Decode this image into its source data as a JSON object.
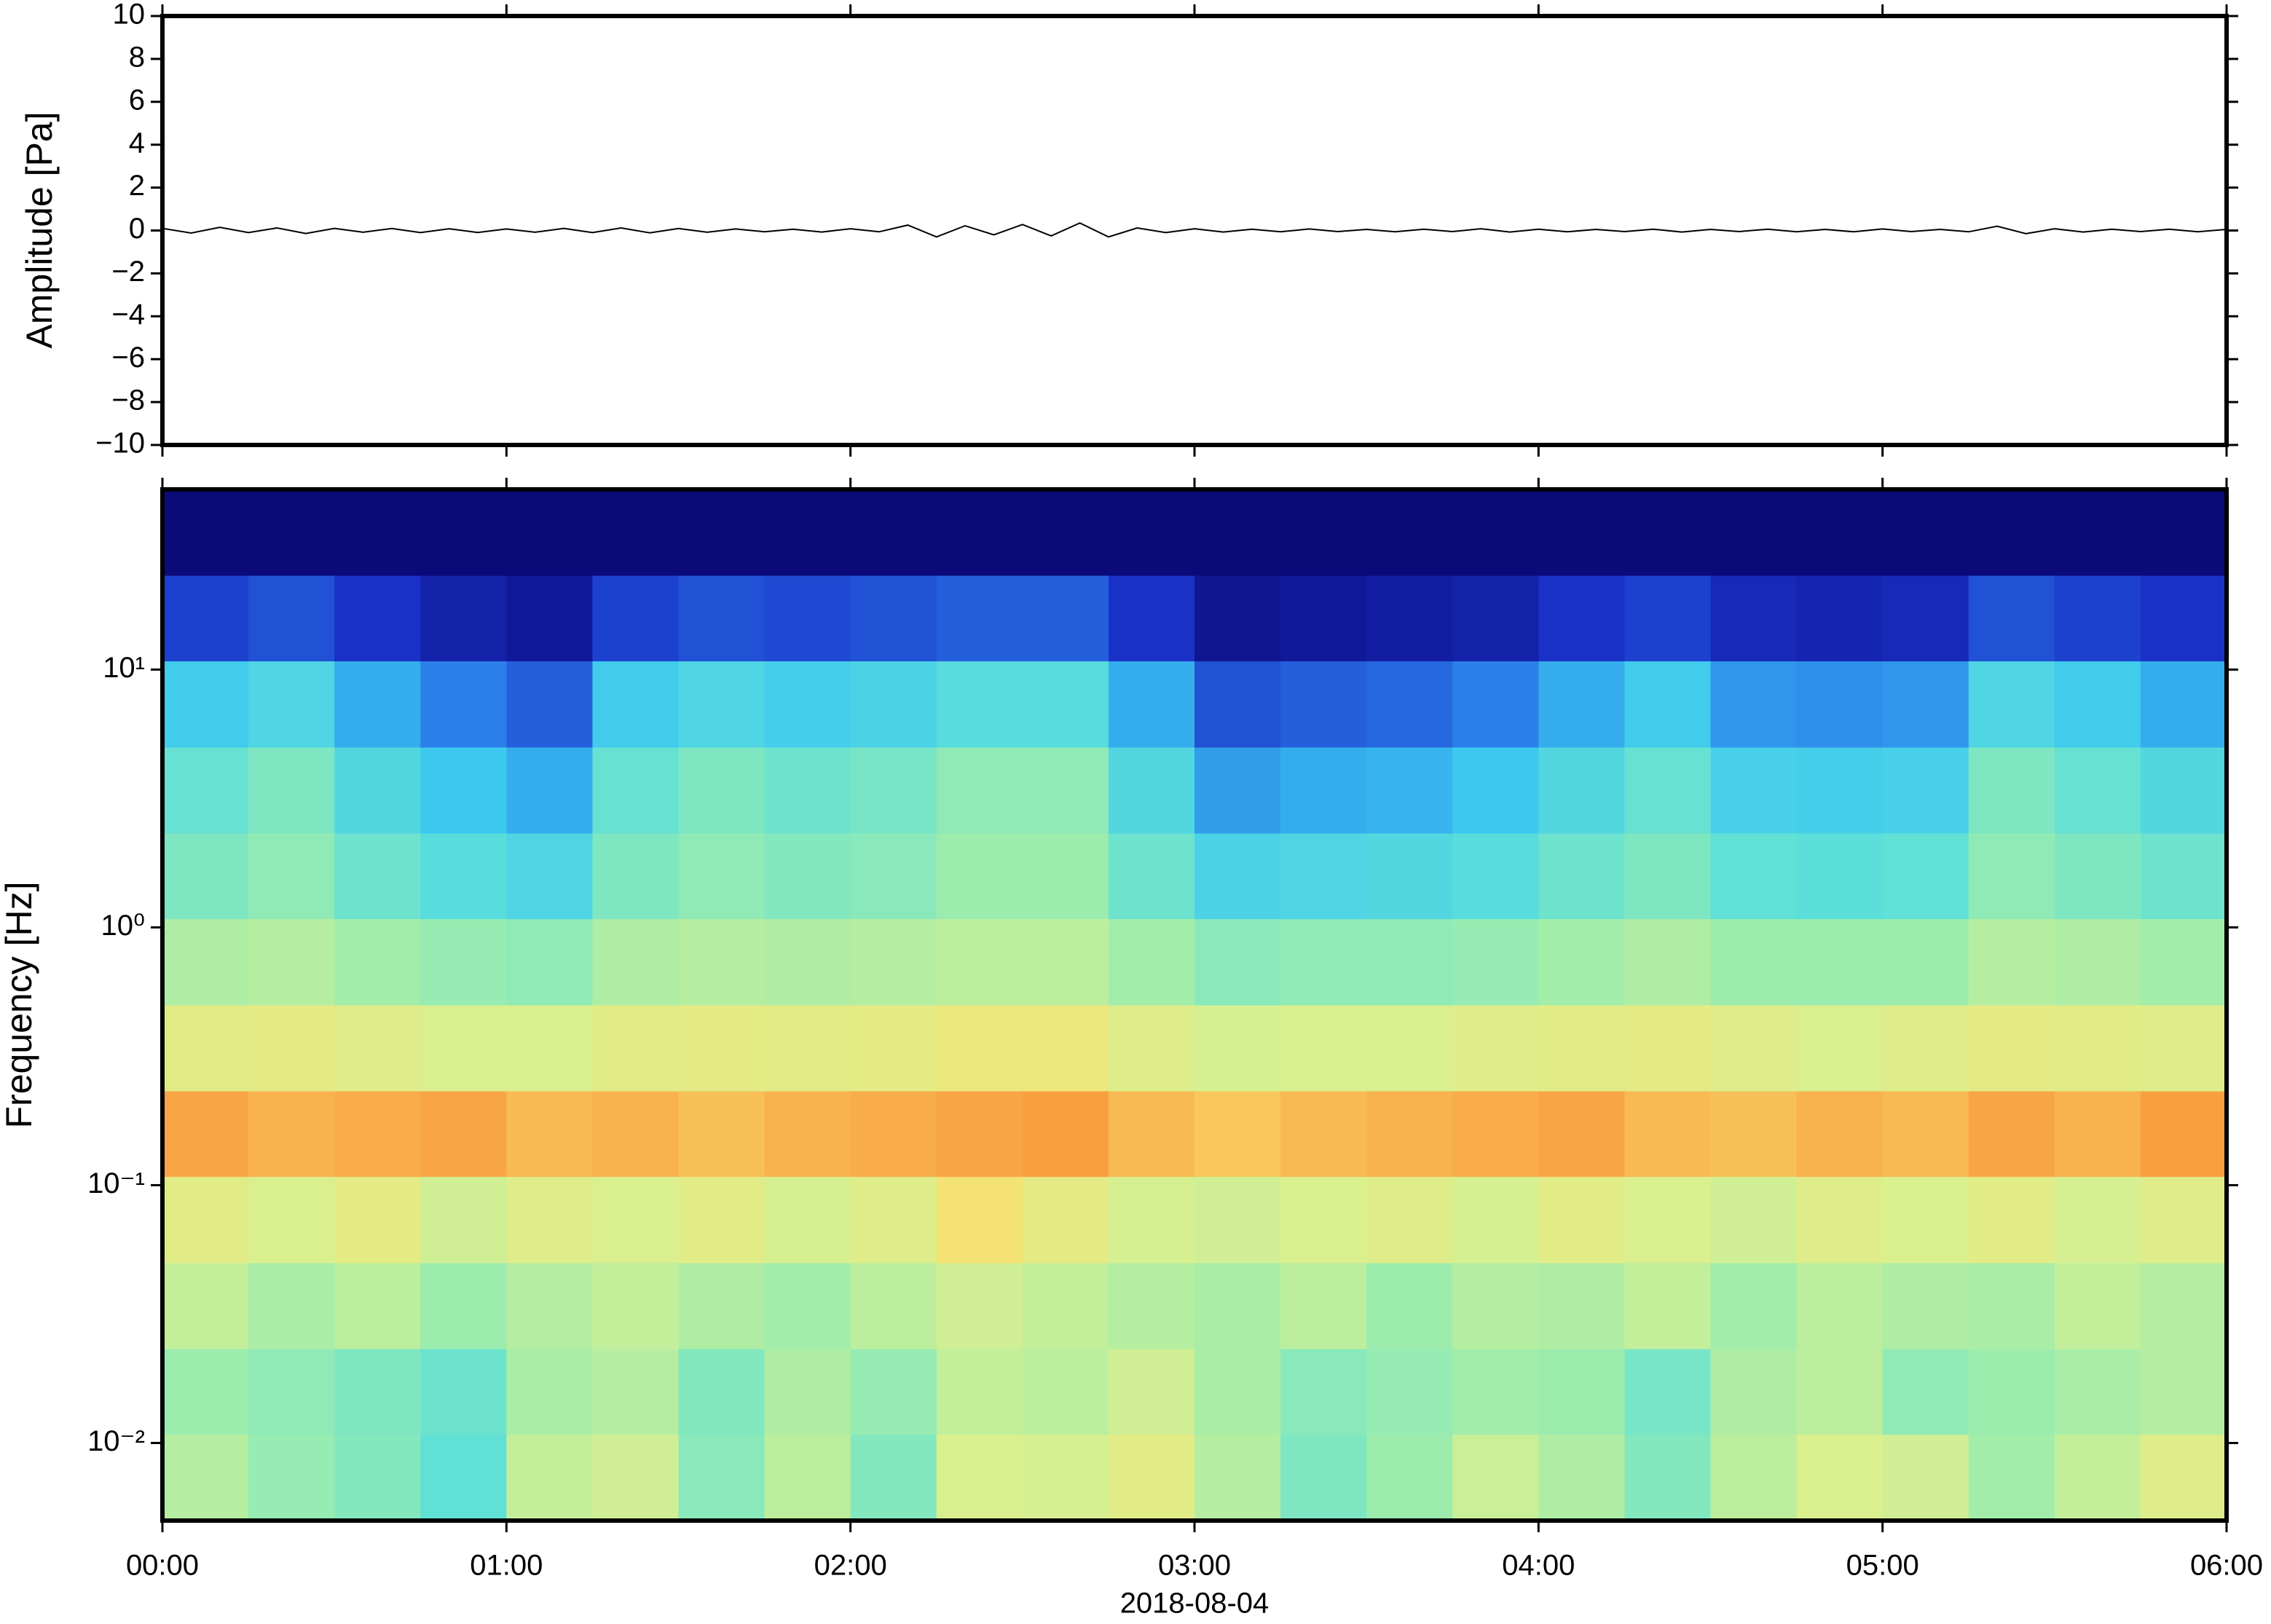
{
  "chart_data": [
    {
      "type": "line",
      "ylabel": "Amplitude [Pa]",
      "color": "#000000",
      "x": [
        0,
        5,
        10,
        15,
        20,
        25,
        30,
        35,
        40,
        45,
        50,
        55,
        60,
        65,
        70,
        75,
        80,
        85,
        90,
        95,
        100,
        105,
        110,
        115,
        120,
        125,
        130,
        135,
        140,
        145,
        150,
        155,
        160,
        165,
        170,
        175,
        180,
        185,
        190,
        195,
        200,
        205,
        210,
        215,
        220,
        225,
        230,
        235,
        240,
        245,
        250,
        255,
        260,
        265,
        270,
        275,
        280,
        285,
        290,
        295,
        300,
        305,
        310,
        315,
        320,
        325,
        330,
        335,
        340,
        345,
        350,
        355,
        360
      ],
      "values": [
        0.1,
        -0.12,
        0.15,
        -0.1,
        0.12,
        -0.14,
        0.1,
        -0.08,
        0.09,
        -0.1,
        0.08,
        -0.09,
        0.07,
        -0.08,
        0.1,
        -0.1,
        0.12,
        -0.11,
        0.09,
        -0.08,
        0.07,
        -0.06,
        0.06,
        -0.07,
        0.08,
        -0.06,
        0.25,
        -0.3,
        0.22,
        -0.2,
        0.28,
        -0.25,
        0.35,
        -0.3,
        0.12,
        -0.1,
        0.08,
        -0.07,
        0.06,
        -0.06,
        0.07,
        -0.05,
        0.05,
        -0.06,
        0.06,
        -0.05,
        0.08,
        -0.07,
        0.06,
        -0.06,
        0.05,
        -0.05,
        0.06,
        -0.07,
        0.05,
        -0.05,
        0.06,
        -0.06,
        0.05,
        -0.06,
        0.07,
        -0.05,
        0.05,
        -0.06,
        0.2,
        -0.15,
        0.08,
        -0.07,
        0.06,
        -0.05,
        0.06,
        -0.06,
        0.05
      ],
      "xlim": [
        0,
        360
      ],
      "ylim": [
        -10,
        10
      ],
      "yticks": [
        {
          "value": -10,
          "label": "−10"
        },
        {
          "value": -8,
          "label": "−8"
        },
        {
          "value": -6,
          "label": "−6"
        },
        {
          "value": -4,
          "label": "−4"
        },
        {
          "value": -2,
          "label": "−2"
        },
        0,
        2,
        4,
        6,
        8,
        10
      ]
    },
    {
      "type": "heatmap",
      "ylabel": "Frequency [Hz]",
      "xlabel": "2018-08-04",
      "log_y": true,
      "colors": [
        "#0a0a78",
        "#1a30c8",
        "#2a7ee8",
        "#3cc8f0",
        "#5ee0d8",
        "#98ecb0",
        "#d8f090",
        "#f8e070",
        "#f8a040"
      ],
      "x_bins": [
        0,
        15,
        30,
        45,
        60,
        75,
        90,
        105,
        120,
        135,
        150,
        165,
        180,
        195,
        210,
        225,
        240,
        255,
        270,
        285,
        300,
        315,
        330,
        345,
        360
      ],
      "y_bins": [
        0.005,
        0.0108,
        0.0232,
        0.05,
        0.108,
        0.232,
        0.5,
        1.08,
        2.32,
        5,
        10.8,
        23.2,
        50
      ],
      "values": [
        [
          5.4,
          4.9,
          4.6,
          4.0,
          5.6,
          5.8,
          4.7,
          5.5,
          4.6,
          6.0,
          5.9,
          6.2,
          5.4,
          4.5,
          5.0,
          5.7,
          5.3,
          4.6,
          5.5,
          6.0,
          5.8,
          5.1,
          5.6,
          6.1
        ],
        [
          5.0,
          4.8,
          4.5,
          4.2,
          5.2,
          5.4,
          4.6,
          5.3,
          4.9,
          5.6,
          5.5,
          5.8,
          5.2,
          4.7,
          4.9,
          5.1,
          5.0,
          4.4,
          5.3,
          5.5,
          4.8,
          5.0,
          5.2,
          5.4
        ],
        [
          5.6,
          5.2,
          5.5,
          5.0,
          5.4,
          5.6,
          5.3,
          5.1,
          5.5,
          5.8,
          5.6,
          5.4,
          5.2,
          5.5,
          5.0,
          5.4,
          5.3,
          5.6,
          5.1,
          5.5,
          5.3,
          5.2,
          5.6,
          5.4
        ],
        [
          6.2,
          6.0,
          6.3,
          5.8,
          6.1,
          6.0,
          6.2,
          5.9,
          6.1,
          6.8,
          6.3,
          5.9,
          5.8,
          6.0,
          6.1,
          5.9,
          6.2,
          6.0,
          5.8,
          6.1,
          6.0,
          6.2,
          5.9,
          6.1
        ],
        [
          7.8,
          7.6,
          7.7,
          7.8,
          7.5,
          7.6,
          7.4,
          7.6,
          7.7,
          7.8,
          7.9,
          7.5,
          7.3,
          7.5,
          7.6,
          7.7,
          7.8,
          7.5,
          7.4,
          7.6,
          7.5,
          7.8,
          7.6,
          7.9
        ],
        [
          6.2,
          6.3,
          6.1,
          6.0,
          6.0,
          6.2,
          6.3,
          6.2,
          6.3,
          6.5,
          6.5,
          6.1,
          5.9,
          6.0,
          6.0,
          6.1,
          6.2,
          6.3,
          6.1,
          6.0,
          6.1,
          6.3,
          6.2,
          6.1
        ],
        [
          5.3,
          5.4,
          5.1,
          4.9,
          4.8,
          5.3,
          5.4,
          5.3,
          5.4,
          5.5,
          5.5,
          5.1,
          4.7,
          4.8,
          4.8,
          4.9,
          5.1,
          5.3,
          5.0,
          5.0,
          5.0,
          5.4,
          5.3,
          5.1
        ],
        [
          4.5,
          4.8,
          4.2,
          3.8,
          3.5,
          4.5,
          4.8,
          4.6,
          4.7,
          5.0,
          5.0,
          4.2,
          3.4,
          3.5,
          3.6,
          3.8,
          4.2,
          4.5,
          4.0,
          3.9,
          4.0,
          4.8,
          4.5,
          4.2
        ],
        [
          4.1,
          4.5,
          3.6,
          3.0,
          2.6,
          4.1,
          4.5,
          4.2,
          4.4,
          4.8,
          4.8,
          3.6,
          2.4,
          2.6,
          2.7,
          3.0,
          3.6,
          4.1,
          3.3,
          3.2,
          3.3,
          4.5,
          4.1,
          3.6
        ],
        [
          3.1,
          3.5,
          2.6,
          2.0,
          1.6,
          3.1,
          3.5,
          3.2,
          3.4,
          3.8,
          3.8,
          2.6,
          1.4,
          1.6,
          1.7,
          2.0,
          2.6,
          3.1,
          2.3,
          2.2,
          2.3,
          3.5,
          3.1,
          2.6
        ],
        [
          1.2,
          1.4,
          1.0,
          0.6,
          0.4,
          1.2,
          1.4,
          1.3,
          1.4,
          1.6,
          1.6,
          1.0,
          0.3,
          0.4,
          0.5,
          0.6,
          1.0,
          1.2,
          0.8,
          0.7,
          0.8,
          1.4,
          1.2,
          1.0
        ],
        [
          0,
          0,
          0,
          0,
          0,
          0,
          0,
          0,
          0,
          0,
          0,
          0,
          0,
          0,
          0,
          0,
          0,
          0,
          0,
          0,
          0,
          0,
          0,
          0
        ]
      ],
      "xlim": [
        0,
        360
      ],
      "ylim": [
        0.005,
        50
      ],
      "xticks": [
        {
          "value": 0,
          "label": "00:00"
        },
        {
          "value": 60,
          "label": "01:00"
        },
        {
          "value": 120,
          "label": "02:00"
        },
        {
          "value": 180,
          "label": "03:00"
        },
        {
          "value": 240,
          "label": "04:00"
        },
        {
          "value": 300,
          "label": "05:00"
        },
        {
          "value": 360,
          "label": "06:00"
        }
      ],
      "yticks": [
        {
          "value": 0.01,
          "label": "10⁻²"
        },
        {
          "value": 0.1,
          "label": "10⁻¹"
        },
        {
          "value": 1,
          "label": "10⁰"
        },
        {
          "value": 10,
          "label": "10¹"
        }
      ]
    }
  ]
}
